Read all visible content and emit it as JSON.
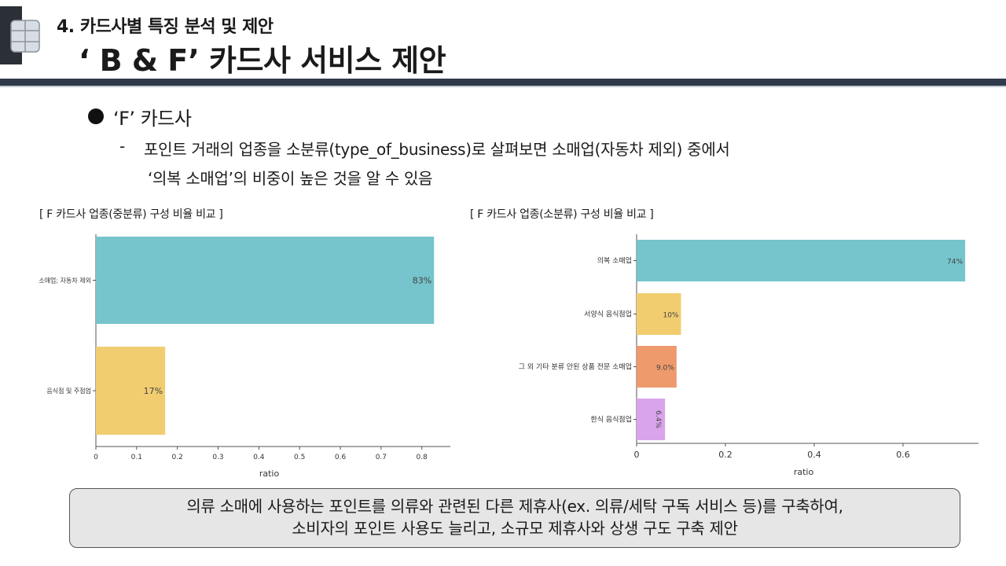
{
  "header": {
    "section_label": "4.  카드사별 특징 분석 및  제안",
    "title": "‘ B & F’ 카드사 서비스 제안"
  },
  "bullet": {
    "heading": "‘F’ 카드사",
    "dash": "-",
    "description_line1": "포인트 거래의 업종을 소분류(type_of_business)로 살펴보면 소매업(자동차 제외) 중에서",
    "description_line2": "‘의복 소매업’의 비중이 높은 것을 알 수 있음"
  },
  "colors": {
    "teal": "#76c4cc",
    "yellow": "#f1cd70",
    "orange": "#ee9a6c",
    "purple": "#d9a4ec",
    "header_bar": "#2f3a4a"
  },
  "chart_data": [
    {
      "type": "bar",
      "orientation": "horizontal",
      "title": "[ F 카드사 업종(중분류) 구성 비율 비교 ]",
      "categories": [
        "소매업; 자동차 제외",
        "음식점 및 주점업"
      ],
      "values": [
        0.83,
        0.17
      ],
      "data_labels": [
        "83%",
        "17%"
      ],
      "bar_colors": [
        "#76c4cc",
        "#f1cd70"
      ],
      "xlabel": "ratio",
      "ylabel": "",
      "xlim": [
        0,
        0.87
      ],
      "xticks": [
        0,
        0.1,
        0.2,
        0.3,
        0.4,
        0.5,
        0.6,
        0.7,
        0.8
      ],
      "xtick_labels": [
        "0",
        "0.1",
        "0.2",
        "0.3",
        "0.4",
        "0.5",
        "0.6",
        "0.7",
        "0.8"
      ]
    },
    {
      "type": "bar",
      "orientation": "horizontal",
      "title": "[ F 카드사 업종(소분류) 구성 비율 비교 ]",
      "categories": [
        "의복 소매업",
        "서양식 음식점업",
        "그 외 기타 분류 안된 상품 전문 소매업",
        "한식 음식점업"
      ],
      "values": [
        0.74,
        0.1,
        0.09,
        0.064
      ],
      "data_labels": [
        "74%",
        "10%",
        "9.0%",
        "6.4%"
      ],
      "bar_colors": [
        "#76c4cc",
        "#f1cd70",
        "#ee9a6c",
        "#d9a4ec"
      ],
      "xlabel": "ratio",
      "ylabel": "",
      "xlim": [
        0,
        0.77
      ],
      "xticks": [
        0,
        0.2,
        0.4,
        0.6
      ],
      "xtick_labels": [
        "0",
        "0.2",
        "0.4",
        "0.6"
      ]
    }
  ],
  "conclusion": {
    "line1": "의류 소매에 사용하는 포인트를 의류와 관련된 다른 제휴사(ex. 의류/세탁 구독 서비스 등)를 구축하여,",
    "line2": "소비자의 포인트 사용도 늘리고, 소규모 제휴사와 상생 구도 구축 제안"
  }
}
